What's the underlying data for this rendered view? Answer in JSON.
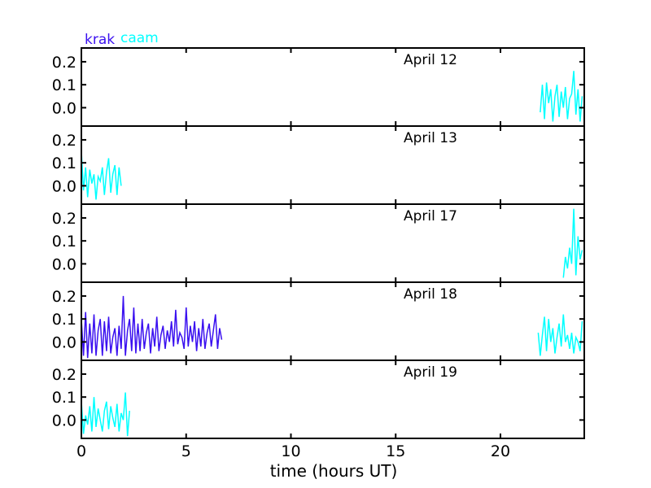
{
  "legend": [
    {
      "label": "krak",
      "color": "#3a10f0"
    },
    {
      "label": "caam",
      "color": "#00ffff"
    }
  ],
  "xlabel": "time (hours UT)",
  "chart_data": {
    "type": "line",
    "xlabel": "time (hours UT)",
    "xlim": [
      0,
      24
    ],
    "ylim": [
      -0.08,
      0.26
    ],
    "xticks": [
      0,
      5,
      10,
      15,
      20
    ],
    "yticks": [
      0.0,
      0.1,
      0.2
    ],
    "ytick_labels": [
      "0.0",
      "0.1",
      "0.2"
    ],
    "legend_placement": "top-left, above plots",
    "panels": [
      {
        "title": "April 12",
        "series": [
          {
            "name": "caam",
            "color": "#00ffff",
            "x": [
              21.9,
              22.0,
              22.1,
              22.2,
              22.3,
              22.4,
              22.5,
              22.6,
              22.7,
              22.8,
              22.9,
              23.0,
              23.1,
              23.2,
              23.3,
              23.4,
              23.5,
              23.6,
              23.7,
              23.8,
              23.9
            ],
            "y": [
              -0.02,
              0.1,
              -0.05,
              0.11,
              0.02,
              0.08,
              -0.06,
              0.05,
              0.1,
              -0.04,
              0.07,
              0.0,
              0.09,
              -0.05,
              0.04,
              0.06,
              0.16,
              -0.03,
              0.08,
              -0.06,
              0.05
            ]
          }
        ]
      },
      {
        "title": "April 13",
        "series": [
          {
            "name": "caam",
            "color": "#00ffff",
            "x": [
              0.0,
              0.1,
              0.2,
              0.3,
              0.4,
              0.5,
              0.6,
              0.7,
              0.8,
              0.9,
              1.0,
              1.1,
              1.2,
              1.3,
              1.4,
              1.5,
              1.6,
              1.7,
              1.8,
              1.9
            ],
            "y": [
              0.15,
              -0.02,
              0.08,
              -0.05,
              0.07,
              0.01,
              0.05,
              -0.06,
              0.04,
              0.02,
              0.08,
              -0.04,
              0.06,
              0.12,
              -0.03,
              0.05,
              0.09,
              -0.04,
              0.08,
              0.0
            ]
          }
        ]
      },
      {
        "title": "April 17",
        "series": [
          {
            "name": "caam",
            "color": "#00ffff",
            "x": [
              23.0,
              23.1,
              23.2,
              23.3,
              23.4,
              23.5,
              23.6,
              23.7,
              23.8,
              23.9
            ],
            "y": [
              -0.06,
              0.03,
              -0.02,
              0.07,
              0.0,
              0.24,
              -0.05,
              0.12,
              0.02,
              0.06
            ]
          }
        ]
      },
      {
        "title": "April 18",
        "series": [
          {
            "name": "caam",
            "color": "#00ffff",
            "x": [
              21.8,
              21.9,
              22.0,
              22.1,
              22.2,
              22.3,
              22.4,
              22.5,
              22.6,
              22.7,
              22.8,
              22.9,
              23.0,
              23.1,
              23.2,
              23.3,
              23.4,
              23.5,
              23.6,
              23.7,
              23.8,
              23.9
            ],
            "y": [
              0.04,
              -0.06,
              0.03,
              0.11,
              -0.04,
              0.1,
              0.0,
              0.06,
              -0.05,
              0.02,
              0.08,
              -0.02,
              0.12,
              0.0,
              0.03,
              -0.03,
              0.04,
              -0.05,
              0.02,
              0.0,
              -0.04,
              0.09
            ]
          },
          {
            "name": "krak",
            "color": "#3a10f0",
            "x": [
              0.0,
              0.1,
              0.2,
              0.3,
              0.4,
              0.5,
              0.6,
              0.7,
              0.8,
              0.9,
              1.0,
              1.1,
              1.2,
              1.3,
              1.4,
              1.5,
              1.6,
              1.7,
              1.8,
              1.9,
              2.0,
              2.1,
              2.2,
              2.3,
              2.4,
              2.5,
              2.6,
              2.7,
              2.8,
              2.9,
              3.0,
              3.1,
              3.2,
              3.3,
              3.4,
              3.5,
              3.6,
              3.7,
              3.8,
              3.9,
              4.0,
              4.1,
              4.2,
              4.3,
              4.4,
              4.5,
              4.6,
              4.7,
              4.8,
              4.9,
              5.0,
              5.1,
              5.2,
              5.3,
              5.4,
              5.5,
              5.6,
              5.7,
              5.8,
              5.9,
              6.0,
              6.1,
              6.2,
              6.3,
              6.4,
              6.5,
              6.6,
              6.7
            ],
            "y": [
              0.1,
              -0.06,
              0.13,
              -0.07,
              0.08,
              -0.05,
              0.12,
              -0.06,
              0.05,
              0.1,
              -0.06,
              0.09,
              -0.04,
              0.11,
              -0.05,
              0.02,
              0.06,
              -0.06,
              0.07,
              -0.03,
              0.2,
              -0.06,
              0.05,
              0.1,
              -0.04,
              0.15,
              -0.05,
              0.08,
              -0.04,
              0.1,
              -0.03,
              0.04,
              0.08,
              -0.05,
              0.06,
              -0.02,
              0.11,
              -0.04,
              0.03,
              0.07,
              -0.03,
              0.05,
              0.0,
              0.09,
              -0.02,
              0.14,
              -0.01,
              0.04,
              0.02,
              -0.03,
              0.15,
              -0.02,
              0.07,
              0.0,
              0.09,
              -0.04,
              0.06,
              -0.02,
              0.1,
              -0.03,
              0.04,
              0.08,
              -0.02,
              0.05,
              0.12,
              -0.03,
              0.06,
              0.01
            ]
          }
        ]
      },
      {
        "title": "April 19",
        "series": [
          {
            "name": "caam",
            "color": "#00ffff",
            "x": [
              0.0,
              0.1,
              0.2,
              0.3,
              0.4,
              0.5,
              0.6,
              0.7,
              0.8,
              0.9,
              1.0,
              1.1,
              1.2,
              1.3,
              1.4,
              1.5,
              1.6,
              1.7,
              1.8,
              1.9,
              2.0,
              2.1,
              2.2,
              2.3
            ],
            "y": [
              0.08,
              -0.06,
              0.02,
              -0.02,
              0.06,
              -0.05,
              0.1,
              -0.03,
              0.05,
              0.0,
              -0.05,
              0.04,
              0.08,
              -0.04,
              0.06,
              0.01,
              -0.03,
              0.07,
              -0.05,
              0.03,
              0.0,
              0.12,
              -0.07,
              0.04
            ]
          }
        ]
      }
    ]
  }
}
